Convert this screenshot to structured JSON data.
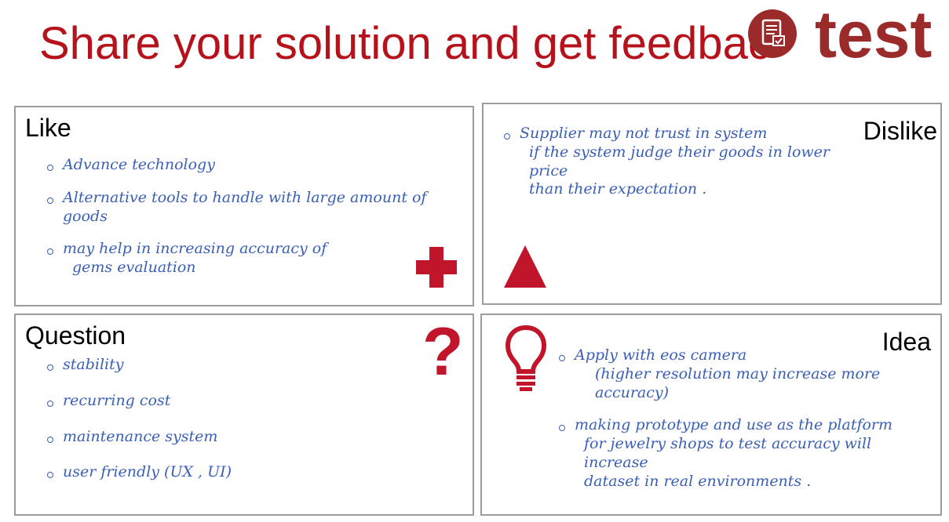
{
  "title": "Share your solution and get feedbac",
  "logo": {
    "word": "test",
    "icon": "clipboard-check-icon",
    "color": "#9b2b2b"
  },
  "accent_color": "#c0152a",
  "handwriting_color": "#3a5fb6",
  "like": {
    "label": "Like",
    "icon": "plus-icon",
    "notes": [
      {
        "text": "Advance technology"
      },
      {
        "text": "Alternative tools to handle with large amount of goods"
      },
      {
        "text": "may help in increasing accuracy of",
        "cont": "gems evaluation"
      }
    ]
  },
  "dislike": {
    "label": "Dislike",
    "icon": "triangle-icon",
    "notes": [
      {
        "text": "Supplier may not trust in system",
        "cont": "if the system judge their goods in lower price",
        "cont2": "than their expectation ."
      }
    ]
  },
  "question": {
    "label": "Question",
    "icon": "question-mark-icon",
    "mark": "?",
    "notes": [
      {
        "text": "stability"
      },
      {
        "text": "recurring cost"
      },
      {
        "text": "maintenance system"
      },
      {
        "text": "user friendly (UX , UI)"
      }
    ]
  },
  "idea": {
    "label": "Idea",
    "icon": "lightbulb-icon",
    "notes": [
      {
        "text": "Apply with eos camera",
        "cont": "(higher resolution may increase more",
        "cont2": "accuracy)"
      },
      {
        "text": "making prototype and use as the platform",
        "cont": "for jewelry shops to test accuracy will increase",
        "cont2": "dataset in real environments ."
      }
    ]
  }
}
